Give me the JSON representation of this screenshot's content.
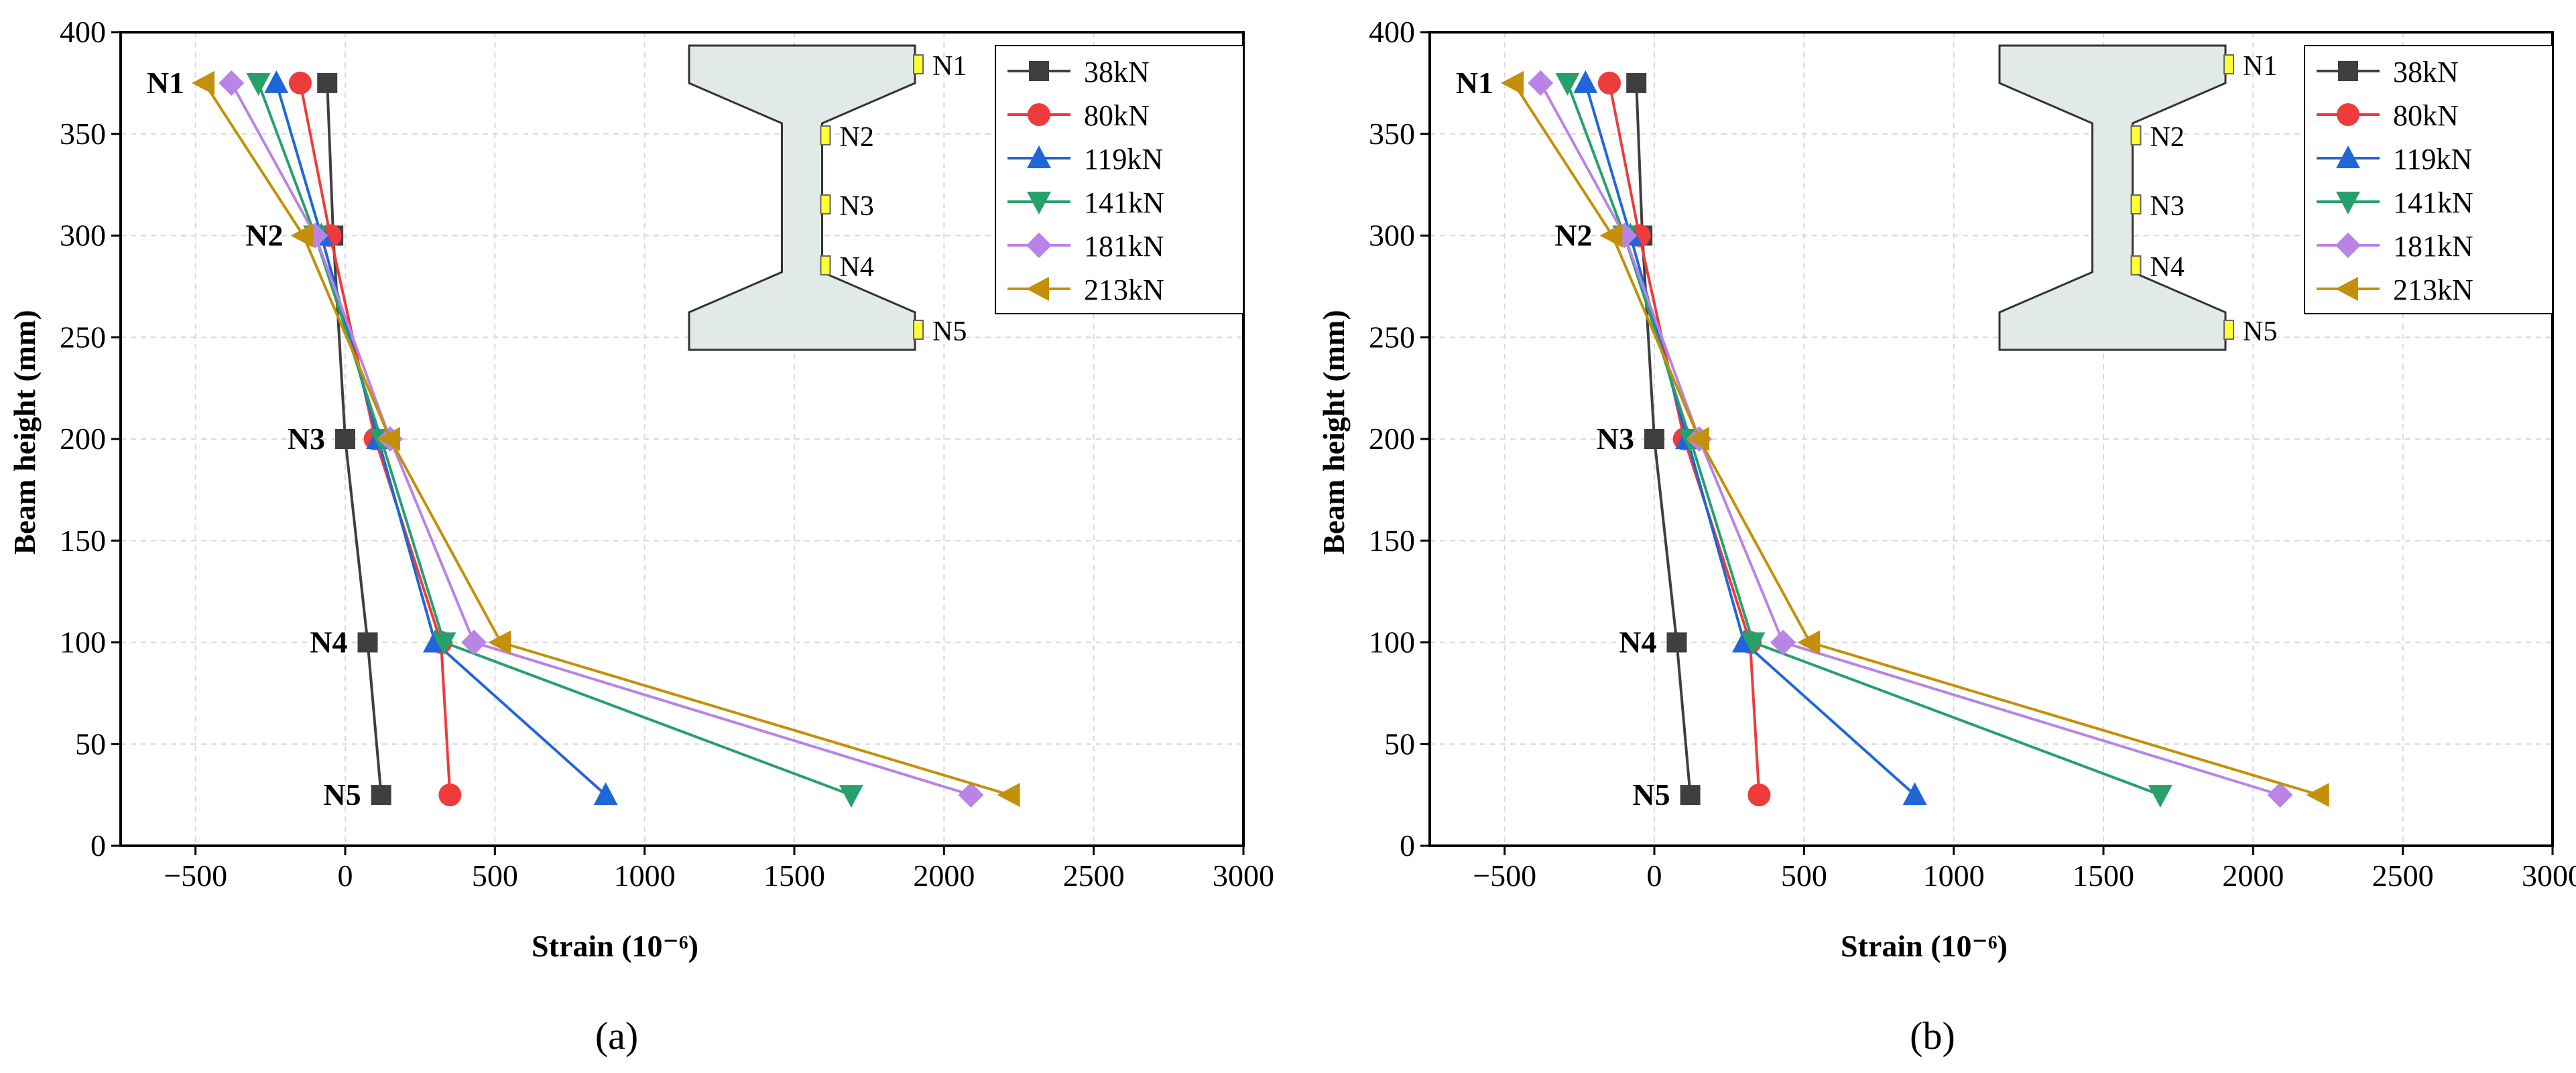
{
  "figure": {
    "captions": [
      "(a)",
      "(b)"
    ]
  },
  "node_names": [
    "N1",
    "N2",
    "N3",
    "N4",
    "N5"
  ],
  "section_node_labels": [
    "N1",
    "N2",
    "N3",
    "N4",
    "N5"
  ],
  "colors": {
    "38kN": "#3f3f3f",
    "80kN": "#ee3b3b",
    "119kN": "#2166d9",
    "141kN": "#27a06b",
    "181kN": "#b884e6",
    "213kN": "#c49009",
    "section_fill": "#e1eae7",
    "gauge_fill": "#ffff33"
  },
  "chart_data": [
    {
      "type": "line",
      "panel": "(a)",
      "title": "",
      "xlabel": "Strain (10⁻⁶)",
      "ylabel": "Beam height (mm)",
      "xlim": [
        -750,
        3000
      ],
      "ylim": [
        0,
        400
      ],
      "xticks": [
        -500,
        0,
        500,
        1000,
        1500,
        2000,
        2500,
        3000
      ],
      "yticks": [
        0,
        50,
        100,
        150,
        200,
        250,
        300,
        350,
        400
      ],
      "grid": true,
      "legend_position": "top-right",
      "heights": [
        375,
        300,
        200,
        100,
        25
      ],
      "series": [
        {
          "name": "38kN",
          "marker": "square",
          "x": [
            -60,
            -40,
            0,
            75,
            120
          ]
        },
        {
          "name": "80kN",
          "marker": "circle",
          "x": [
            -150,
            -50,
            100,
            320,
            350
          ]
        },
        {
          "name": "119kN",
          "marker": "triangle-up",
          "x": [
            -230,
            -80,
            110,
            300,
            870
          ]
        },
        {
          "name": "141kN",
          "marker": "triangle-down",
          "x": [
            -290,
            -100,
            120,
            330,
            1690
          ]
        },
        {
          "name": "181kN",
          "marker": "diamond",
          "x": [
            -380,
            -100,
            150,
            430,
            2090
          ]
        },
        {
          "name": "213kN",
          "marker": "triangle-left",
          "x": [
            -470,
            -140,
            150,
            520,
            2220
          ]
        }
      ]
    },
    {
      "type": "line",
      "panel": "(b)",
      "title": "",
      "xlabel": "Strain (10⁻⁶)",
      "ylabel": "Beam height (mm)",
      "xlim": [
        -750,
        3000
      ],
      "ylim": [
        0,
        400
      ],
      "xticks": [
        -500,
        0,
        500,
        1000,
        1500,
        2000,
        2500,
        3000
      ],
      "yticks": [
        0,
        50,
        100,
        150,
        200,
        250,
        300,
        350,
        400
      ],
      "grid": true,
      "legend_position": "top-right",
      "heights": [
        375,
        300,
        200,
        100,
        25
      ],
      "series": [
        {
          "name": "38kN",
          "marker": "square",
          "x": [
            -60,
            -40,
            0,
            75,
            120
          ]
        },
        {
          "name": "80kN",
          "marker": "circle",
          "x": [
            -150,
            -50,
            100,
            320,
            350
          ]
        },
        {
          "name": "119kN",
          "marker": "triangle-up",
          "x": [
            -230,
            -80,
            110,
            300,
            870
          ]
        },
        {
          "name": "141kN",
          "marker": "triangle-down",
          "x": [
            -290,
            -100,
            120,
            330,
            1690
          ]
        },
        {
          "name": "181kN",
          "marker": "diamond",
          "x": [
            -380,
            -100,
            150,
            430,
            2090
          ]
        },
        {
          "name": "213kN",
          "marker": "triangle-left",
          "x": [
            -470,
            -140,
            150,
            520,
            2220
          ]
        }
      ]
    }
  ]
}
